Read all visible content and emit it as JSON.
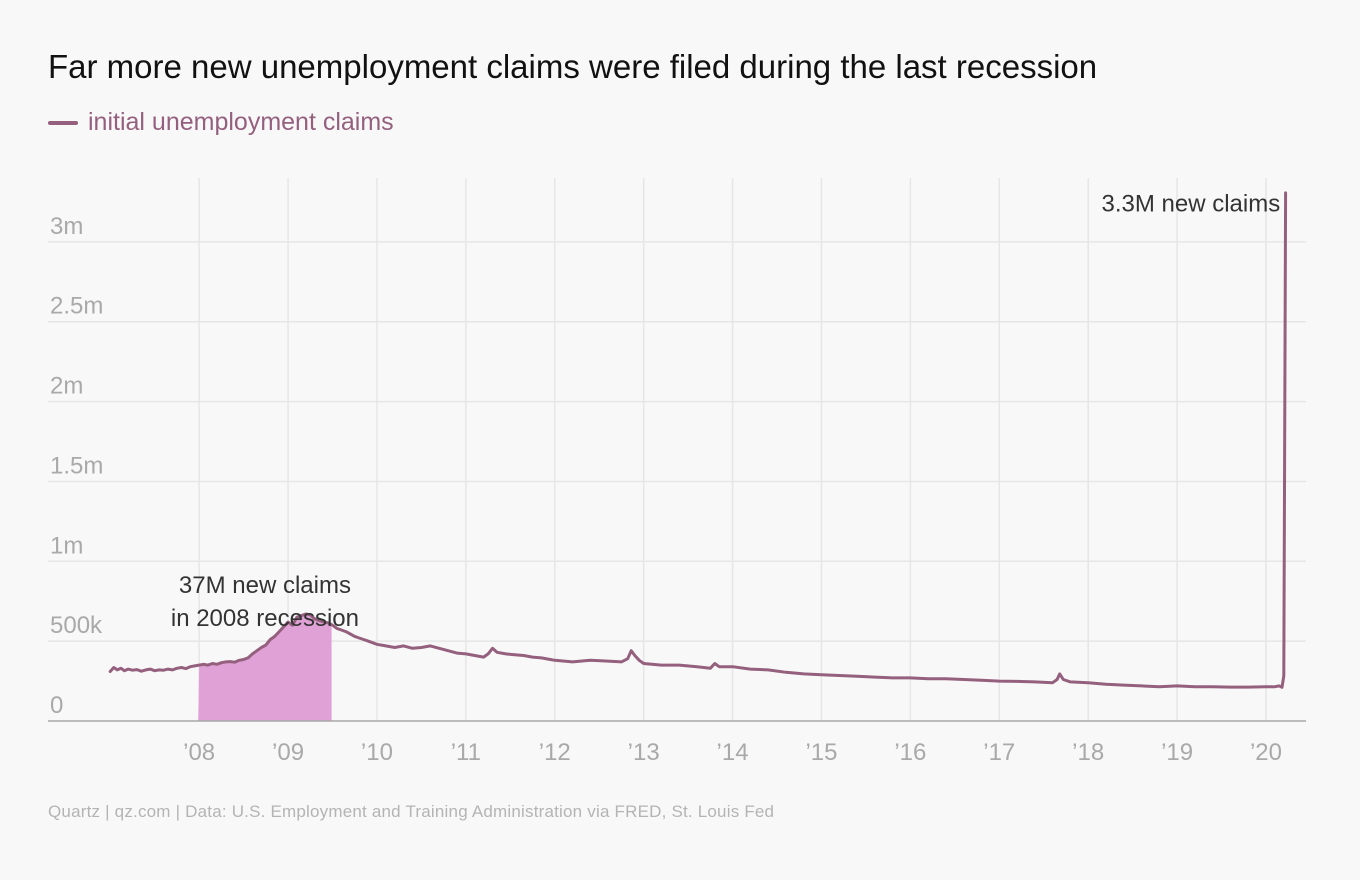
{
  "title": "Far more new unemployment claims were filed during the last recession",
  "legend": {
    "label": "initial unemployment claims"
  },
  "source": "Quartz | qz.com | Data: U.S. Employment and Training Administration via FRED, St. Louis Fed",
  "colors": {
    "line": "#94607e",
    "recession_fill": "#e0a2d6",
    "grid": "#e6e6e6",
    "axis": "#a7a7a7",
    "tick_label": "#a9a9a9",
    "annotation": "#333333"
  },
  "chart_data": {
    "type": "line",
    "title": "Far more new unemployment claims were filed during the last recession",
    "xlabel": "",
    "ylabel": "",
    "x_ticks": [
      2008,
      2009,
      2010,
      2011,
      2012,
      2013,
      2014,
      2015,
      2016,
      2017,
      2018,
      2019,
      2020
    ],
    "x_tick_labels": [
      "’08",
      "’09",
      "’10",
      "’11",
      "’12",
      "’13",
      "’14",
      "’15",
      "’16",
      "’17",
      "’18",
      "’19",
      "’20"
    ],
    "y_ticks": [
      0,
      500000,
      1000000,
      1500000,
      2000000,
      2500000,
      3000000
    ],
    "y_tick_labels": [
      "0",
      "500k",
      "1m",
      "1.5m",
      "2m",
      "2.5m",
      "3m"
    ],
    "xlim": [
      2006.3,
      2020.45
    ],
    "ylim": [
      0,
      3400000
    ],
    "grid": true,
    "legend_position": "top-left",
    "series": [
      {
        "name": "initial unemployment claims",
        "points": [
          [
            2007.0,
            310000
          ],
          [
            2007.04,
            335000
          ],
          [
            2007.08,
            320000
          ],
          [
            2007.12,
            330000
          ],
          [
            2007.16,
            315000
          ],
          [
            2007.2,
            325000
          ],
          [
            2007.25,
            318000
          ],
          [
            2007.3,
            322000
          ],
          [
            2007.35,
            312000
          ],
          [
            2007.4,
            320000
          ],
          [
            2007.45,
            325000
          ],
          [
            2007.5,
            315000
          ],
          [
            2007.55,
            320000
          ],
          [
            2007.6,
            318000
          ],
          [
            2007.65,
            325000
          ],
          [
            2007.7,
            320000
          ],
          [
            2007.75,
            330000
          ],
          [
            2007.8,
            335000
          ],
          [
            2007.85,
            328000
          ],
          [
            2007.9,
            340000
          ],
          [
            2007.95,
            345000
          ],
          [
            2008.0,
            350000
          ],
          [
            2008.05,
            355000
          ],
          [
            2008.1,
            350000
          ],
          [
            2008.15,
            360000
          ],
          [
            2008.2,
            355000
          ],
          [
            2008.25,
            365000
          ],
          [
            2008.3,
            370000
          ],
          [
            2008.35,
            372000
          ],
          [
            2008.4,
            368000
          ],
          [
            2008.45,
            380000
          ],
          [
            2008.5,
            385000
          ],
          [
            2008.55,
            395000
          ],
          [
            2008.6,
            420000
          ],
          [
            2008.65,
            440000
          ],
          [
            2008.7,
            460000
          ],
          [
            2008.75,
            475000
          ],
          [
            2008.8,
            510000
          ],
          [
            2008.85,
            530000
          ],
          [
            2008.9,
            560000
          ],
          [
            2008.95,
            590000
          ],
          [
            2009.0,
            620000
          ],
          [
            2009.05,
            600000
          ],
          [
            2009.1,
            650000
          ],
          [
            2009.15,
            660000
          ],
          [
            2009.2,
            670000
          ],
          [
            2009.25,
            665000
          ],
          [
            2009.3,
            640000
          ],
          [
            2009.35,
            630000
          ],
          [
            2009.4,
            620000
          ],
          [
            2009.45,
            615000
          ],
          [
            2009.5,
            600000
          ],
          [
            2009.55,
            580000
          ],
          [
            2009.6,
            570000
          ],
          [
            2009.65,
            560000
          ],
          [
            2009.7,
            545000
          ],
          [
            2009.75,
            530000
          ],
          [
            2009.8,
            520000
          ],
          [
            2009.85,
            510000
          ],
          [
            2009.9,
            500000
          ],
          [
            2009.95,
            490000
          ],
          [
            2010.0,
            480000
          ],
          [
            2010.1,
            470000
          ],
          [
            2010.2,
            460000
          ],
          [
            2010.3,
            470000
          ],
          [
            2010.4,
            455000
          ],
          [
            2010.5,
            460000
          ],
          [
            2010.6,
            470000
          ],
          [
            2010.7,
            455000
          ],
          [
            2010.8,
            440000
          ],
          [
            2010.9,
            425000
          ],
          [
            2011.0,
            420000
          ],
          [
            2011.1,
            410000
          ],
          [
            2011.2,
            400000
          ],
          [
            2011.25,
            420000
          ],
          [
            2011.3,
            455000
          ],
          [
            2011.35,
            430000
          ],
          [
            2011.45,
            420000
          ],
          [
            2011.55,
            415000
          ],
          [
            2011.65,
            410000
          ],
          [
            2011.75,
            400000
          ],
          [
            2011.85,
            395000
          ],
          [
            2011.95,
            385000
          ],
          [
            2012.0,
            380000
          ],
          [
            2012.2,
            370000
          ],
          [
            2012.4,
            380000
          ],
          [
            2012.6,
            375000
          ],
          [
            2012.75,
            370000
          ],
          [
            2012.82,
            390000
          ],
          [
            2012.86,
            440000
          ],
          [
            2012.9,
            410000
          ],
          [
            2012.95,
            380000
          ],
          [
            2013.0,
            360000
          ],
          [
            2013.2,
            350000
          ],
          [
            2013.4,
            350000
          ],
          [
            2013.6,
            340000
          ],
          [
            2013.75,
            330000
          ],
          [
            2013.8,
            360000
          ],
          [
            2013.85,
            340000
          ],
          [
            2014.0,
            340000
          ],
          [
            2014.2,
            325000
          ],
          [
            2014.4,
            320000
          ],
          [
            2014.6,
            305000
          ],
          [
            2014.8,
            295000
          ],
          [
            2015.0,
            290000
          ],
          [
            2015.2,
            285000
          ],
          [
            2015.4,
            280000
          ],
          [
            2015.6,
            275000
          ],
          [
            2015.8,
            270000
          ],
          [
            2016.0,
            270000
          ],
          [
            2016.2,
            265000
          ],
          [
            2016.4,
            265000
          ],
          [
            2016.6,
            260000
          ],
          [
            2016.8,
            255000
          ],
          [
            2017.0,
            250000
          ],
          [
            2017.2,
            248000
          ],
          [
            2017.4,
            245000
          ],
          [
            2017.6,
            240000
          ],
          [
            2017.65,
            260000
          ],
          [
            2017.68,
            295000
          ],
          [
            2017.72,
            260000
          ],
          [
            2017.8,
            245000
          ],
          [
            2018.0,
            240000
          ],
          [
            2018.2,
            230000
          ],
          [
            2018.4,
            225000
          ],
          [
            2018.6,
            220000
          ],
          [
            2018.8,
            215000
          ],
          [
            2019.0,
            220000
          ],
          [
            2019.2,
            215000
          ],
          [
            2019.4,
            215000
          ],
          [
            2019.6,
            212000
          ],
          [
            2019.8,
            212000
          ],
          [
            2020.0,
            215000
          ],
          [
            2020.1,
            215000
          ],
          [
            2020.15,
            220000
          ],
          [
            2020.18,
            211000
          ],
          [
            2020.2,
            282000
          ],
          [
            2020.22,
            3307000
          ]
        ]
      }
    ],
    "shaded_regions": [
      {
        "label": "2008 recession",
        "x_start": 2007.99,
        "x_end": 2009.49
      }
    ],
    "annotations": [
      {
        "lines": [
          "37M new claims",
          "in 2008 recession"
        ],
        "x": 2008.74,
        "y": 800000,
        "anchor": "middle"
      },
      {
        "lines": [
          "3.3M new claims"
        ],
        "x": 2020.16,
        "y": 3190000,
        "anchor": "end"
      }
    ]
  }
}
